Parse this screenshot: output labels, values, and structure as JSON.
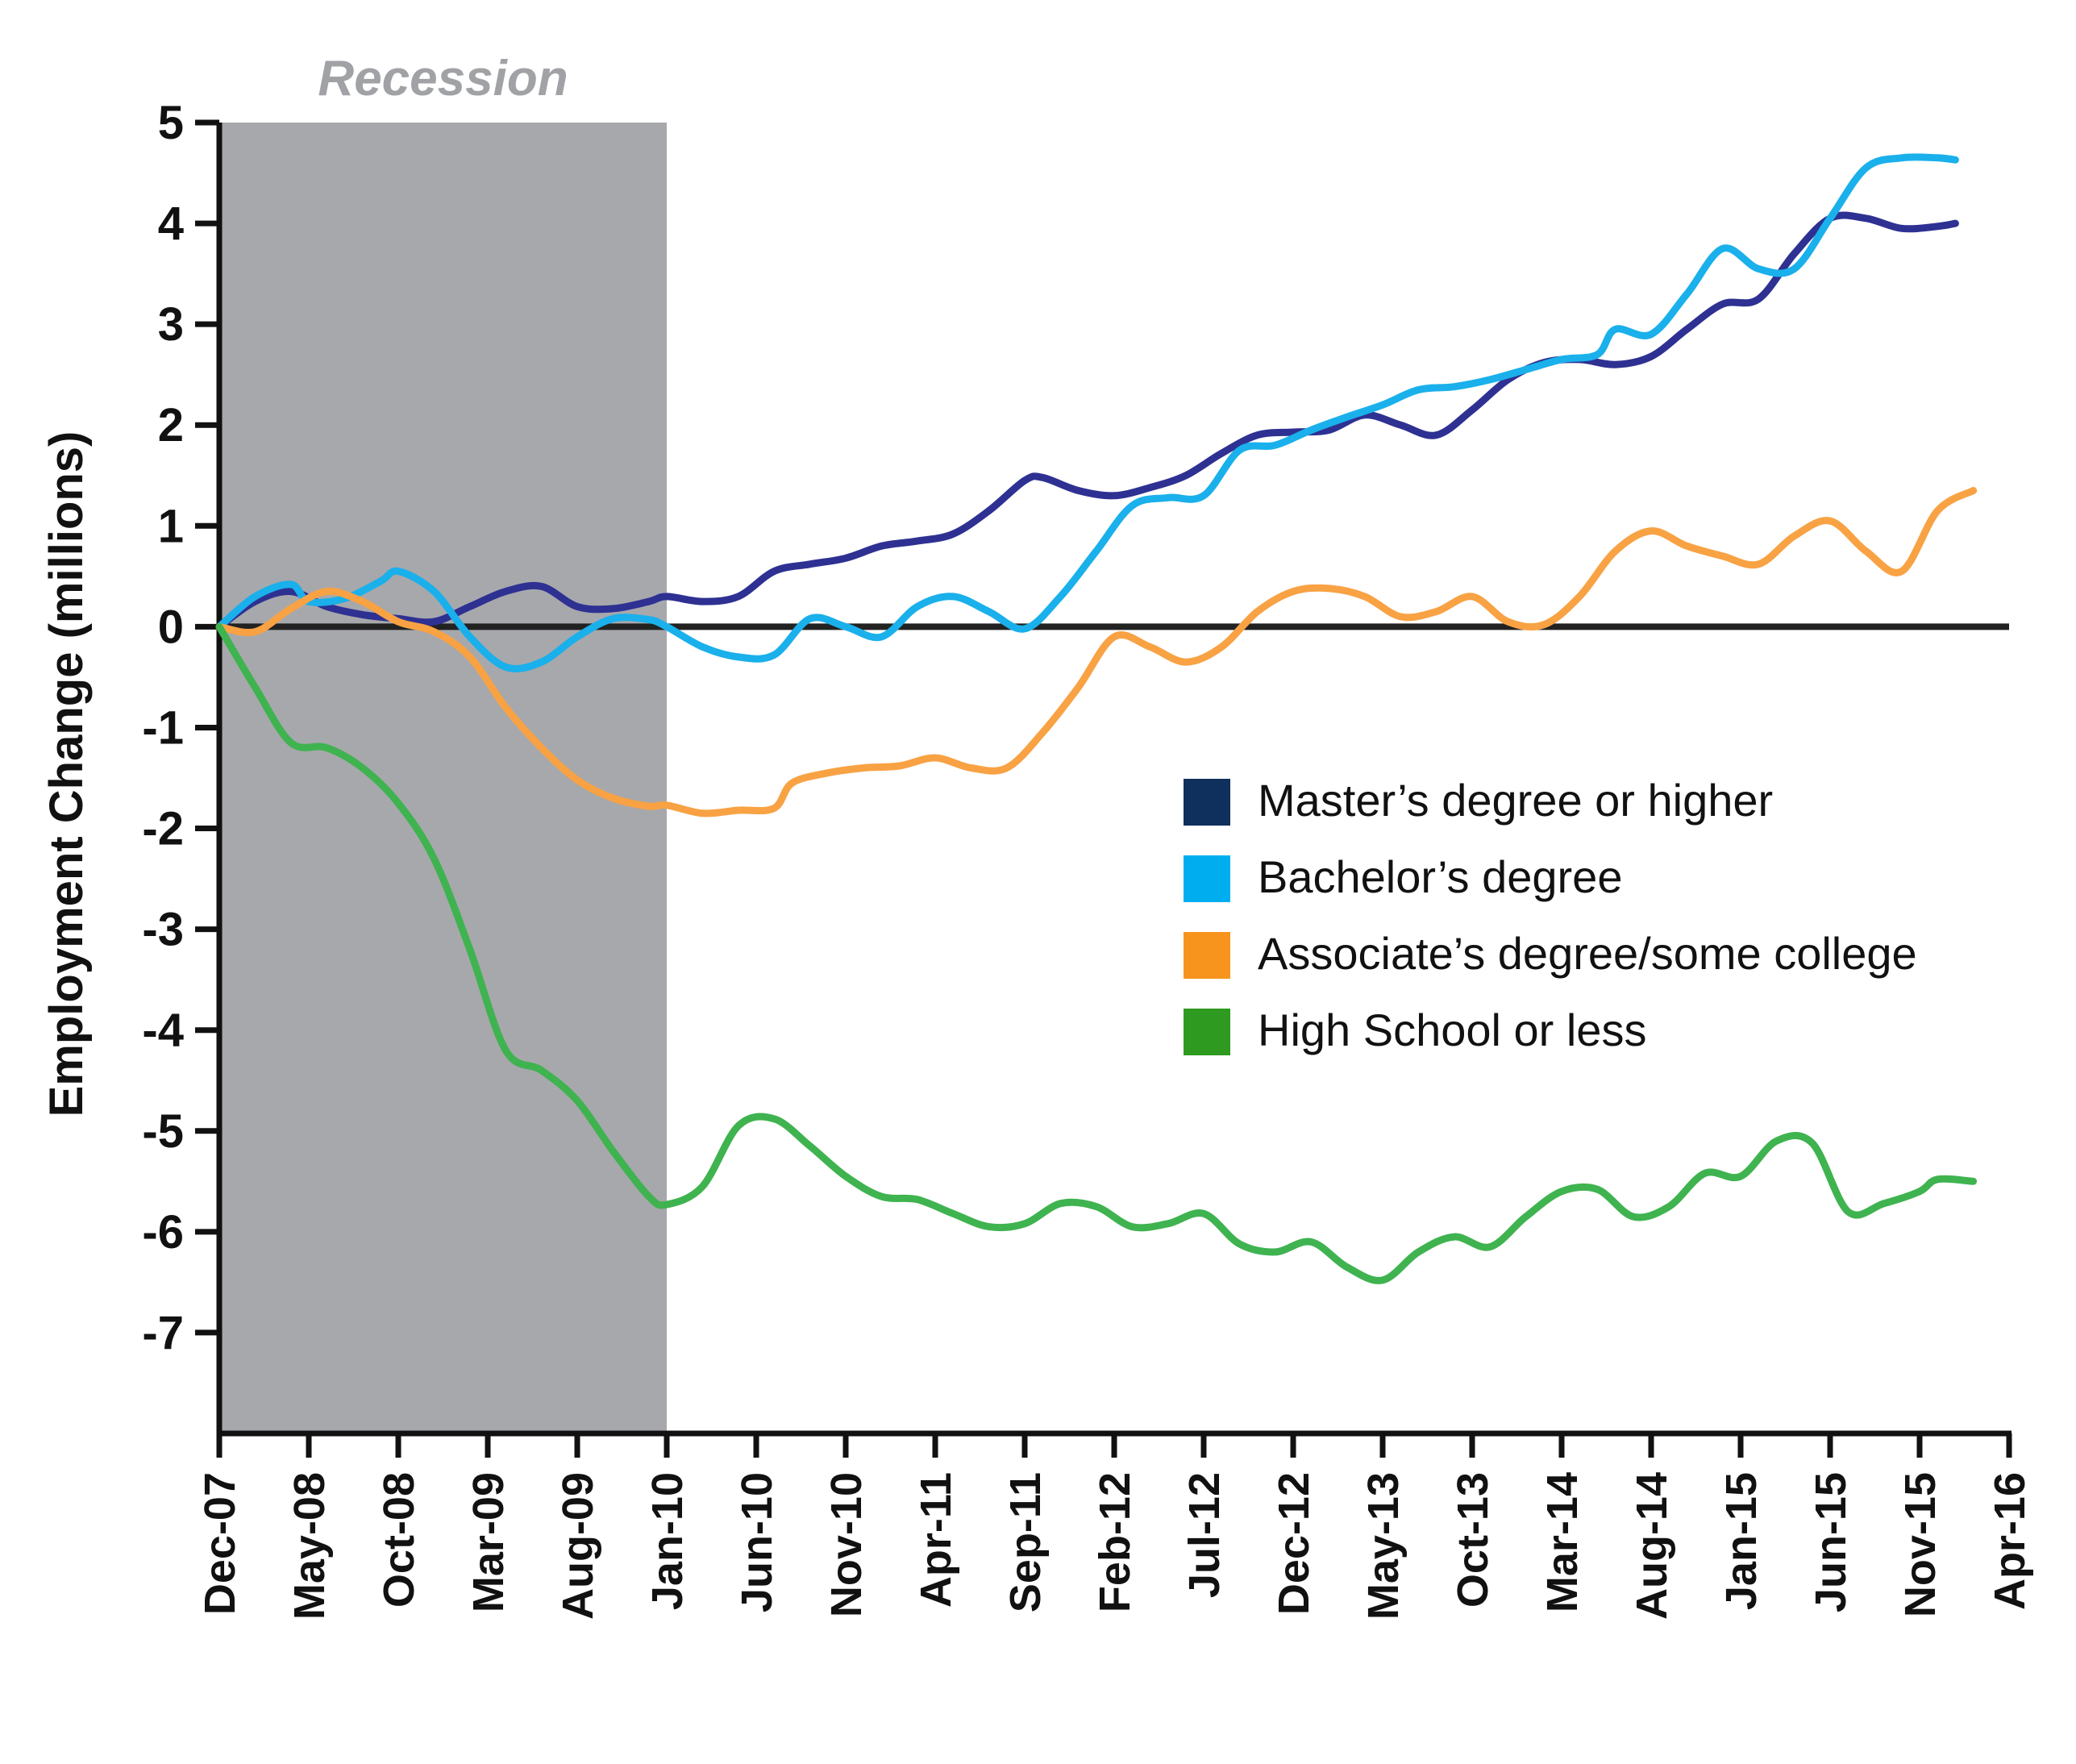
{
  "chart_data": {
    "type": "line",
    "title": "",
    "xlabel": "",
    "ylabel": "Employment Change (millions)",
    "ylim": [
      -8,
      5
    ],
    "xlim": [
      "2007-12",
      "2016-04"
    ],
    "y_ticks": [
      "5",
      "4",
      "3",
      "2",
      "1",
      "0",
      "-1",
      "-2",
      "-3",
      "-4",
      "-5",
      "-6",
      "-7"
    ],
    "x_ticks": [
      "Dec-07",
      "May-08",
      "Oct-08",
      "Mar-09",
      "Aug-09",
      "Jan-10",
      "Jun-10",
      "Nov-10",
      "Apr-11",
      "Sep-11",
      "Feb-12",
      "Jul-12",
      "Dec-12",
      "May-13",
      "Oct-13",
      "Mar-14",
      "Aug-14",
      "Jan-15",
      "Jun-15",
      "Nov-15",
      "Apr-16"
    ],
    "zero_line": true,
    "grid": false,
    "legend_position": "center-right",
    "recession": {
      "label": "Recession",
      "start": "2007-12",
      "end": "2010-01",
      "color": "#a7a8ac"
    },
    "series": [
      {
        "name": "Master’s degree or higher",
        "legend_color": "#0f2f5c",
        "line_color": "#2e3192",
        "points": [
          [
            "2007-12",
            0.0
          ],
          [
            "2008-02",
            0.25
          ],
          [
            "2008-04",
            0.35
          ],
          [
            "2008-06",
            0.2
          ],
          [
            "2008-08",
            0.12
          ],
          [
            "2008-10",
            0.08
          ],
          [
            "2008-12",
            0.05
          ],
          [
            "2009-02",
            0.2
          ],
          [
            "2009-04",
            0.35
          ],
          [
            "2009-06",
            0.4
          ],
          [
            "2009-08",
            0.2
          ],
          [
            "2009-10",
            0.18
          ],
          [
            "2009-12",
            0.25
          ],
          [
            "2010-01",
            0.3
          ],
          [
            "2010-03",
            0.25
          ],
          [
            "2010-05",
            0.3
          ],
          [
            "2010-07",
            0.55
          ],
          [
            "2010-09",
            0.62
          ],
          [
            "2010-11",
            0.68
          ],
          [
            "2011-01",
            0.8
          ],
          [
            "2011-03",
            0.85
          ],
          [
            "2011-05",
            0.92
          ],
          [
            "2011-07",
            1.15
          ],
          [
            "2011-09",
            1.45
          ],
          [
            "2011-10",
            1.48
          ],
          [
            "2011-12",
            1.35
          ],
          [
            "2012-02",
            1.3
          ],
          [
            "2012-04",
            1.38
          ],
          [
            "2012-06",
            1.5
          ],
          [
            "2012-08",
            1.72
          ],
          [
            "2012-10",
            1.9
          ],
          [
            "2012-12",
            1.93
          ],
          [
            "2013-02",
            1.95
          ],
          [
            "2013-04",
            2.1
          ],
          [
            "2013-06",
            2.0
          ],
          [
            "2013-08",
            1.9
          ],
          [
            "2013-10",
            2.15
          ],
          [
            "2013-12",
            2.45
          ],
          [
            "2014-02",
            2.62
          ],
          [
            "2014-04",
            2.65
          ],
          [
            "2014-06",
            2.6
          ],
          [
            "2014-08",
            2.68
          ],
          [
            "2014-10",
            2.95
          ],
          [
            "2014-12",
            3.2
          ],
          [
            "2015-02",
            3.25
          ],
          [
            "2015-04",
            3.7
          ],
          [
            "2015-06",
            4.05
          ],
          [
            "2015-08",
            4.05
          ],
          [
            "2015-10",
            3.95
          ],
          [
            "2015-12",
            3.97
          ],
          [
            "2016-01",
            4.0
          ]
        ]
      },
      {
        "name": "Bachelor’s degree",
        "legend_color": "#00aeef",
        "line_color": "#1ab0eb",
        "points": [
          [
            "2007-12",
            0.0
          ],
          [
            "2008-02",
            0.3
          ],
          [
            "2008-04",
            0.42
          ],
          [
            "2008-05",
            0.25
          ],
          [
            "2008-07",
            0.28
          ],
          [
            "2008-09",
            0.45
          ],
          [
            "2008-10",
            0.55
          ],
          [
            "2008-12",
            0.35
          ],
          [
            "2009-02",
            -0.1
          ],
          [
            "2009-04",
            -0.4
          ],
          [
            "2009-06",
            -0.35
          ],
          [
            "2009-08",
            -0.1
          ],
          [
            "2009-10",
            0.08
          ],
          [
            "2009-12",
            0.07
          ],
          [
            "2010-01",
            0.0
          ],
          [
            "2010-03",
            -0.2
          ],
          [
            "2010-05",
            -0.3
          ],
          [
            "2010-07",
            -0.28
          ],
          [
            "2010-09",
            0.08
          ],
          [
            "2010-11",
            0.0
          ],
          [
            "2011-01",
            -0.1
          ],
          [
            "2011-03",
            0.2
          ],
          [
            "2011-05",
            0.3
          ],
          [
            "2011-07",
            0.15
          ],
          [
            "2011-09",
            -0.02
          ],
          [
            "2011-11",
            0.3
          ],
          [
            "2012-01",
            0.75
          ],
          [
            "2012-03",
            1.2
          ],
          [
            "2012-05",
            1.28
          ],
          [
            "2012-07",
            1.3
          ],
          [
            "2012-09",
            1.75
          ],
          [
            "2012-11",
            1.8
          ],
          [
            "2013-01",
            1.95
          ],
          [
            "2013-03",
            2.08
          ],
          [
            "2013-05",
            2.2
          ],
          [
            "2013-07",
            2.35
          ],
          [
            "2013-09",
            2.38
          ],
          [
            "2013-11",
            2.45
          ],
          [
            "2014-01",
            2.55
          ],
          [
            "2014-03",
            2.65
          ],
          [
            "2014-05",
            2.7
          ],
          [
            "2014-06",
            2.95
          ],
          [
            "2014-08",
            2.9
          ],
          [
            "2014-10",
            3.3
          ],
          [
            "2014-12",
            3.75
          ],
          [
            "2015-02",
            3.55
          ],
          [
            "2015-04",
            3.55
          ],
          [
            "2015-06",
            4.05
          ],
          [
            "2015-08",
            4.55
          ],
          [
            "2015-10",
            4.65
          ],
          [
            "2015-12",
            4.65
          ],
          [
            "2016-01",
            4.63
          ]
        ]
      },
      {
        "name": "Associate’s degree/some college",
        "legend_color": "#f7941d",
        "line_color": "#f8a244",
        "points": [
          [
            "2007-12",
            0.0
          ],
          [
            "2008-02",
            -0.05
          ],
          [
            "2008-04",
            0.18
          ],
          [
            "2008-06",
            0.35
          ],
          [
            "2008-08",
            0.25
          ],
          [
            "2008-10",
            0.05
          ],
          [
            "2008-12",
            -0.05
          ],
          [
            "2009-02",
            -0.3
          ],
          [
            "2009-04",
            -0.8
          ],
          [
            "2009-06",
            -1.2
          ],
          [
            "2009-08",
            -1.52
          ],
          [
            "2009-10",
            -1.7
          ],
          [
            "2009-12",
            -1.78
          ],
          [
            "2010-01",
            -1.77
          ],
          [
            "2010-03",
            -1.85
          ],
          [
            "2010-05",
            -1.82
          ],
          [
            "2010-07",
            -1.8
          ],
          [
            "2010-08",
            -1.55
          ],
          [
            "2010-10",
            -1.45
          ],
          [
            "2010-12",
            -1.4
          ],
          [
            "2011-02",
            -1.38
          ],
          [
            "2011-04",
            -1.3
          ],
          [
            "2011-06",
            -1.4
          ],
          [
            "2011-08",
            -1.4
          ],
          [
            "2011-10",
            -1.05
          ],
          [
            "2011-12",
            -0.6
          ],
          [
            "2012-02",
            -0.1
          ],
          [
            "2012-04",
            -0.2
          ],
          [
            "2012-06",
            -0.35
          ],
          [
            "2012-08",
            -0.2
          ],
          [
            "2012-10",
            0.15
          ],
          [
            "2012-12",
            0.35
          ],
          [
            "2013-02",
            0.38
          ],
          [
            "2013-04",
            0.3
          ],
          [
            "2013-06",
            0.1
          ],
          [
            "2013-08",
            0.15
          ],
          [
            "2013-10",
            0.3
          ],
          [
            "2013-12",
            0.05
          ],
          [
            "2014-02",
            0.02
          ],
          [
            "2014-04",
            0.3
          ],
          [
            "2014-06",
            0.75
          ],
          [
            "2014-08",
            0.95
          ],
          [
            "2014-10",
            0.8
          ],
          [
            "2014-12",
            0.7
          ],
          [
            "2015-02",
            0.62
          ],
          [
            "2015-04",
            0.9
          ],
          [
            "2015-06",
            1.05
          ],
          [
            "2015-08",
            0.75
          ],
          [
            "2015-10",
            0.55
          ],
          [
            "2015-12",
            1.15
          ],
          [
            "2016-02",
            1.35
          ]
        ]
      },
      {
        "name": "High School or less",
        "legend_color": "#2e9a1f",
        "line_color": "#3fb34f",
        "points": [
          [
            "2007-12",
            0.0
          ],
          [
            "2008-02",
            -0.6
          ],
          [
            "2008-04",
            -1.15
          ],
          [
            "2008-06",
            -1.2
          ],
          [
            "2008-08",
            -1.4
          ],
          [
            "2008-10",
            -1.75
          ],
          [
            "2008-12",
            -2.3
          ],
          [
            "2009-02",
            -3.2
          ],
          [
            "2009-04",
            -4.2
          ],
          [
            "2009-06",
            -4.4
          ],
          [
            "2009-08",
            -4.7
          ],
          [
            "2009-10",
            -5.2
          ],
          [
            "2009-12",
            -5.65
          ],
          [
            "2010-01",
            -5.73
          ],
          [
            "2010-03",
            -5.55
          ],
          [
            "2010-05",
            -4.95
          ],
          [
            "2010-07",
            -4.88
          ],
          [
            "2010-09",
            -5.15
          ],
          [
            "2010-11",
            -5.45
          ],
          [
            "2011-01",
            -5.65
          ],
          [
            "2011-03",
            -5.68
          ],
          [
            "2011-05",
            -5.82
          ],
          [
            "2011-07",
            -5.95
          ],
          [
            "2011-09",
            -5.92
          ],
          [
            "2011-11",
            -5.72
          ],
          [
            "2012-01",
            -5.75
          ],
          [
            "2012-03",
            -5.95
          ],
          [
            "2012-05",
            -5.92
          ],
          [
            "2012-07",
            -5.82
          ],
          [
            "2012-09",
            -6.12
          ],
          [
            "2012-11",
            -6.2
          ],
          [
            "2013-01",
            -6.1
          ],
          [
            "2013-03",
            -6.35
          ],
          [
            "2013-05",
            -6.48
          ],
          [
            "2013-07",
            -6.2
          ],
          [
            "2013-09",
            -6.05
          ],
          [
            "2013-11",
            -6.15
          ],
          [
            "2014-01",
            -5.85
          ],
          [
            "2014-03",
            -5.6
          ],
          [
            "2014-05",
            -5.58
          ],
          [
            "2014-07",
            -5.85
          ],
          [
            "2014-09",
            -5.75
          ],
          [
            "2014-11",
            -5.42
          ],
          [
            "2015-01",
            -5.45
          ],
          [
            "2015-03",
            -5.1
          ],
          [
            "2015-05",
            -5.12
          ],
          [
            "2015-07",
            -5.8
          ],
          [
            "2015-09",
            -5.72
          ],
          [
            "2015-11",
            -5.6
          ],
          [
            "2015-12",
            -5.48
          ],
          [
            "2016-02",
            -5.5
          ]
        ]
      }
    ]
  }
}
